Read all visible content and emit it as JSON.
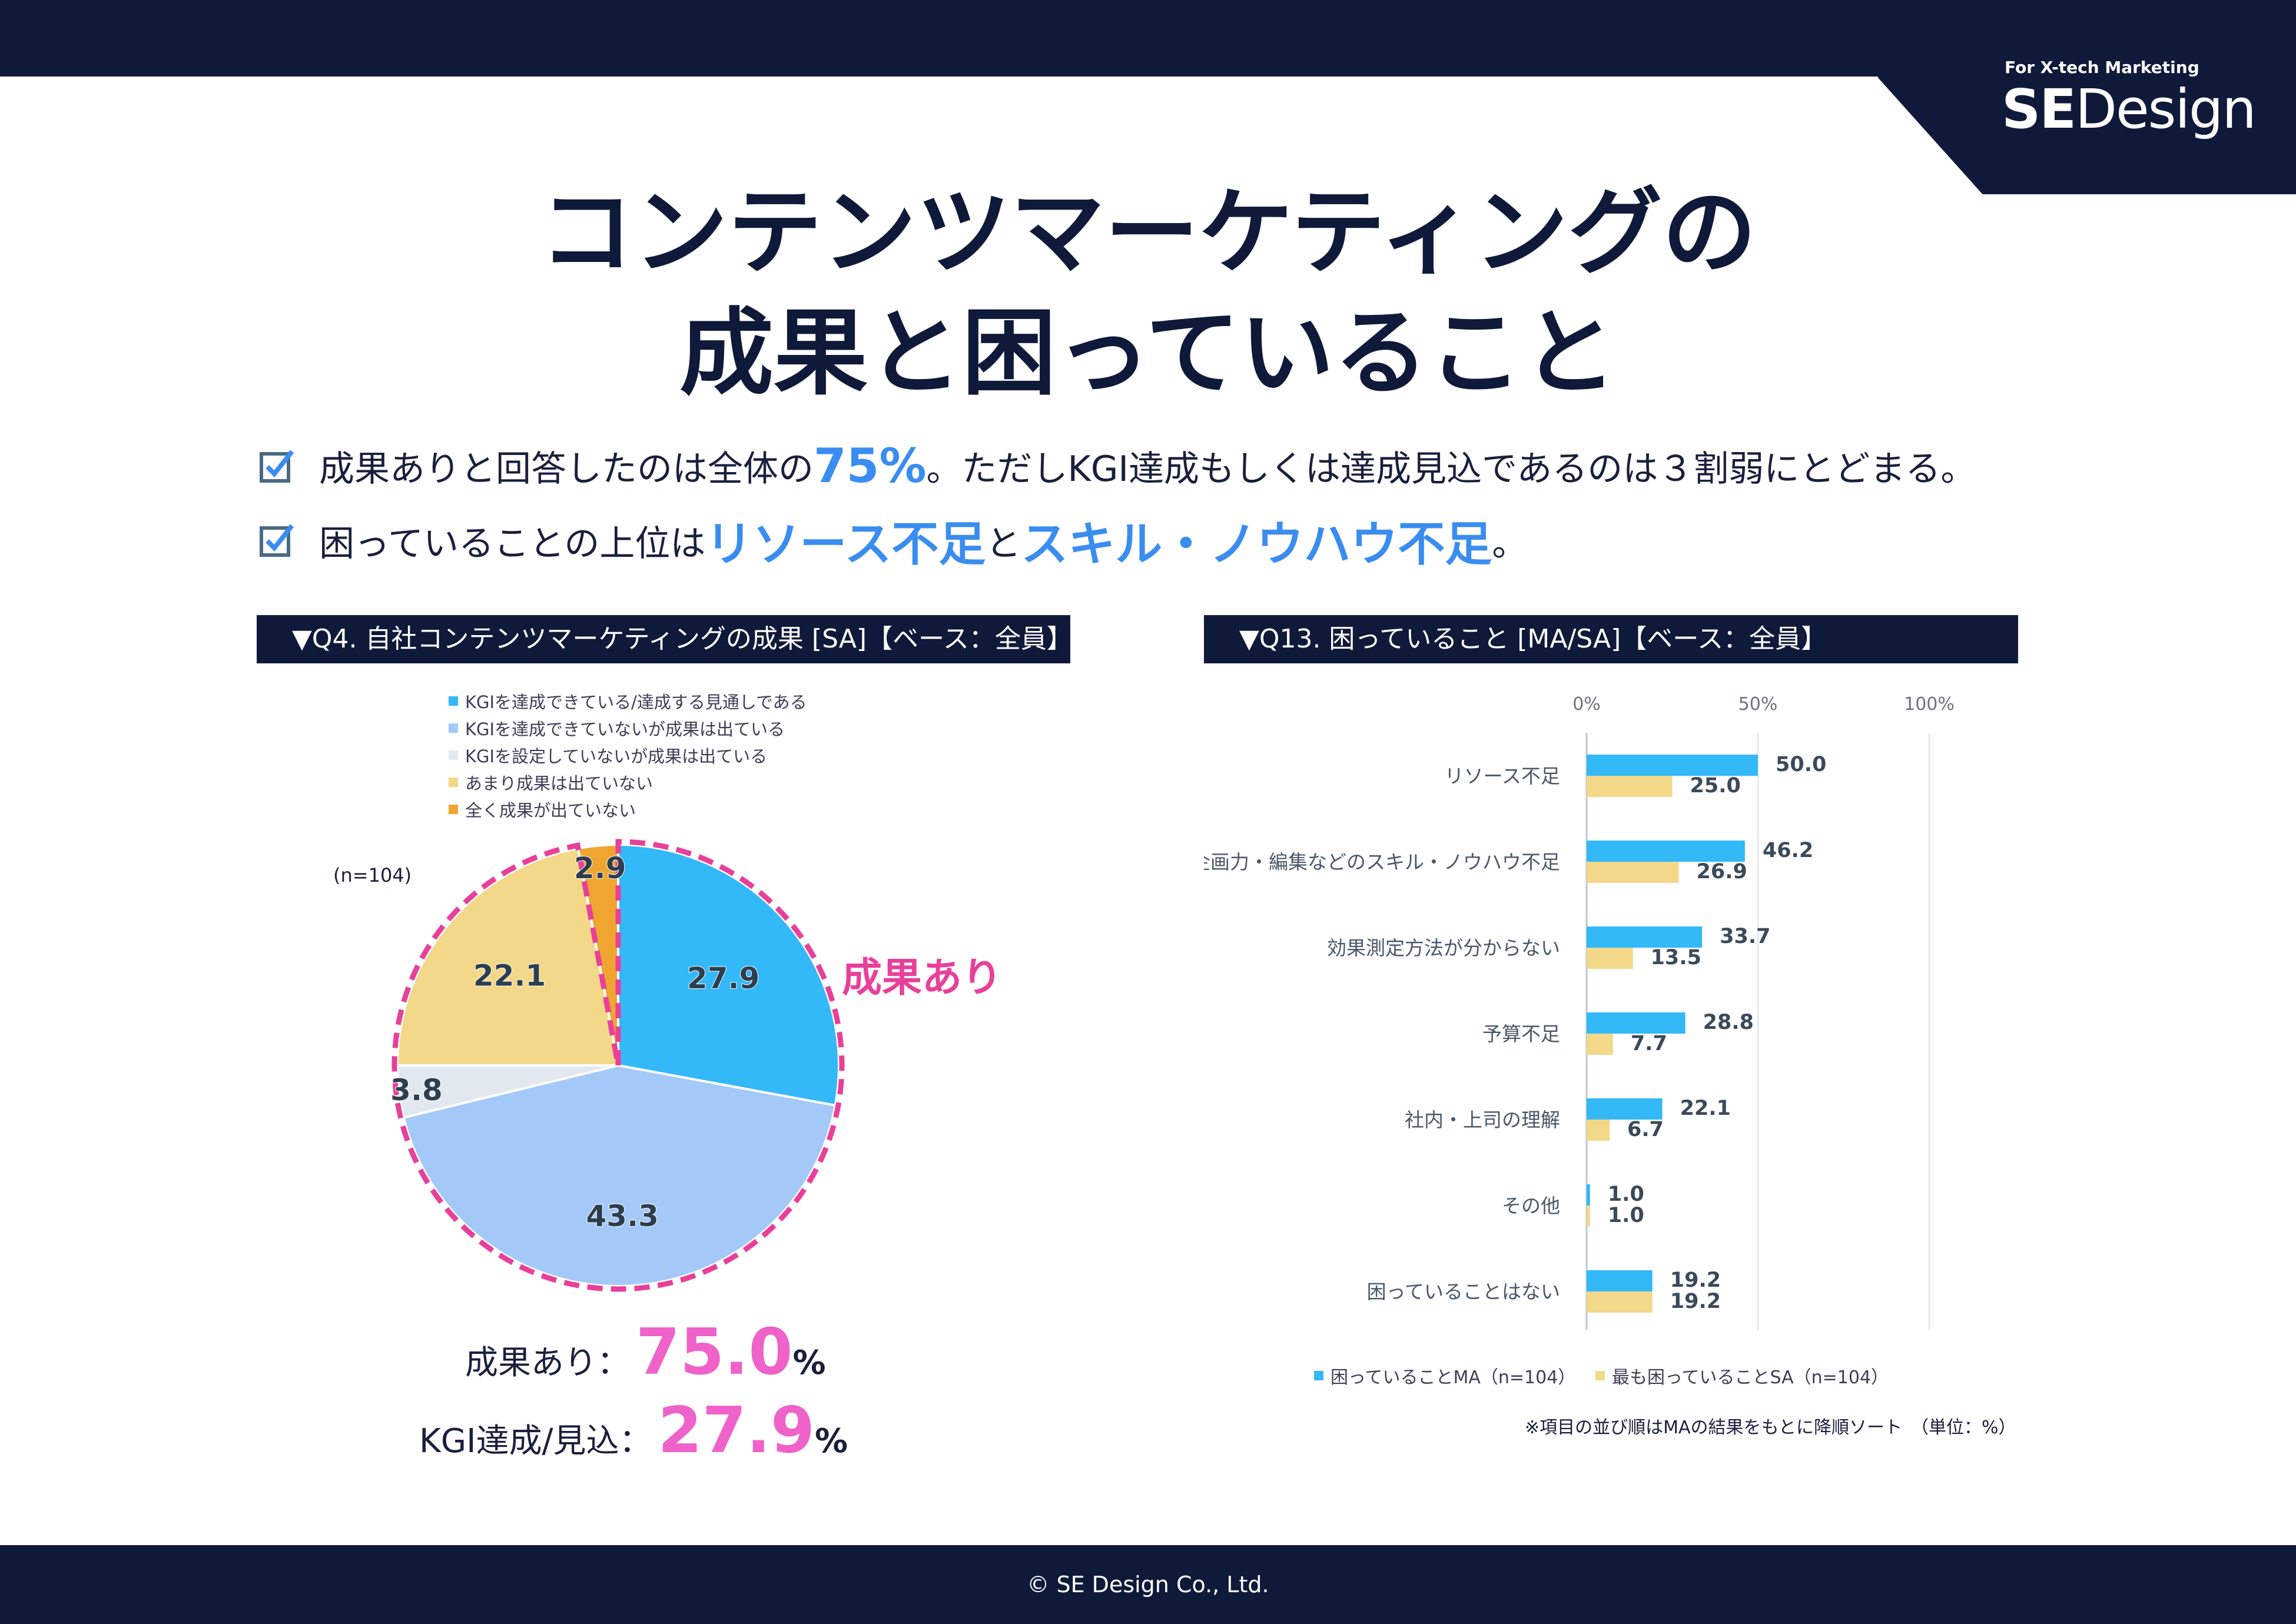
{
  "brand": {
    "tagline": "For X-tech Marketing",
    "logo_bold": "SE",
    "logo_thin": "Design"
  },
  "title": {
    "line1": "コンテンツマーケティングの",
    "line2": "成果と困っていること"
  },
  "bullets": [
    {
      "pre": "成果ありと回答したのは全体の",
      "highlight": "75%",
      "post": "。ただしKGI達成もしくは達成見込であるのは３割弱にとどまる。"
    },
    {
      "pre": "困っていることの上位は",
      "highlight": "リソース不足",
      "mid": "と",
      "highlight2": "スキル・ノウハウ不足",
      "post": "。"
    }
  ],
  "q4": {
    "header": "▼Q4. 自社コンテンツマーケティングの成果 [SA]【ベース：全員】",
    "sample": "(n=104)",
    "callout": "成果あり",
    "summary": [
      {
        "label": "成果あり：",
        "value": "75.0",
        "unit": "%"
      },
      {
        "label": "KGI達成/見込：",
        "value": "27.9",
        "unit": "%"
      }
    ]
  },
  "q13": {
    "header": "▼Q13. 困っていること [MA/SA]【ベース：全員】",
    "note": "※項目の並び順はMAの結果をもとに降順ソート　（単位：%）"
  },
  "colors": {
    "navy": "#0f1a3a",
    "blue": "#33b8f8",
    "lightblue": "#a4c9f8",
    "pale": "#e2e8f0",
    "yellow": "#f3d889",
    "orange": "#f0a530",
    "pink": "#e8409a"
  },
  "chart_data": [
    {
      "type": "pie",
      "labels": [
        "KGIを達成できている/達成する見通しである",
        "KGIを達成できていないが成果は出ている",
        "KGIを設定していないが成果は出ている",
        "あまり成果は出ていない",
        "全く成果が出ていない"
      ],
      "values": [
        27.9,
        43.3,
        3.8,
        22.1,
        2.9
      ],
      "data_labels": [
        "27.9",
        "43.3",
        "3.8",
        "22.1",
        "2.9"
      ],
      "legend_position": "top"
    },
    {
      "type": "bar",
      "orientation": "horizontal",
      "categories": [
        "リソース不足",
        "企画力・編集などのスキル・ノウハウ不足",
        "効果測定方法が分からない",
        "予算不足",
        "社内・上司の理解",
        "その他",
        "困っていることはない"
      ],
      "series": [
        {
          "name": "困っていることMA（n=104）",
          "values": [
            50.0,
            46.2,
            33.7,
            28.8,
            22.1,
            1.0,
            19.2
          ],
          "labels": [
            "50.0",
            "46.2",
            "33.7",
            "28.8",
            "22.1",
            "1.0",
            "19.2"
          ]
        },
        {
          "name": "最も困っていることSA（n=104）",
          "values": [
            25.0,
            26.9,
            13.5,
            7.7,
            6.7,
            1.0,
            19.2
          ],
          "labels": [
            "25.0",
            "26.9",
            "13.5",
            "7.7",
            "6.7",
            "1.0",
            "19.2"
          ]
        }
      ],
      "xlim": [
        0,
        100
      ],
      "xticks": [
        "0%",
        "50%",
        "100%"
      ],
      "legend_position": "bottom"
    }
  ],
  "footer": "© SE Design Co., Ltd."
}
